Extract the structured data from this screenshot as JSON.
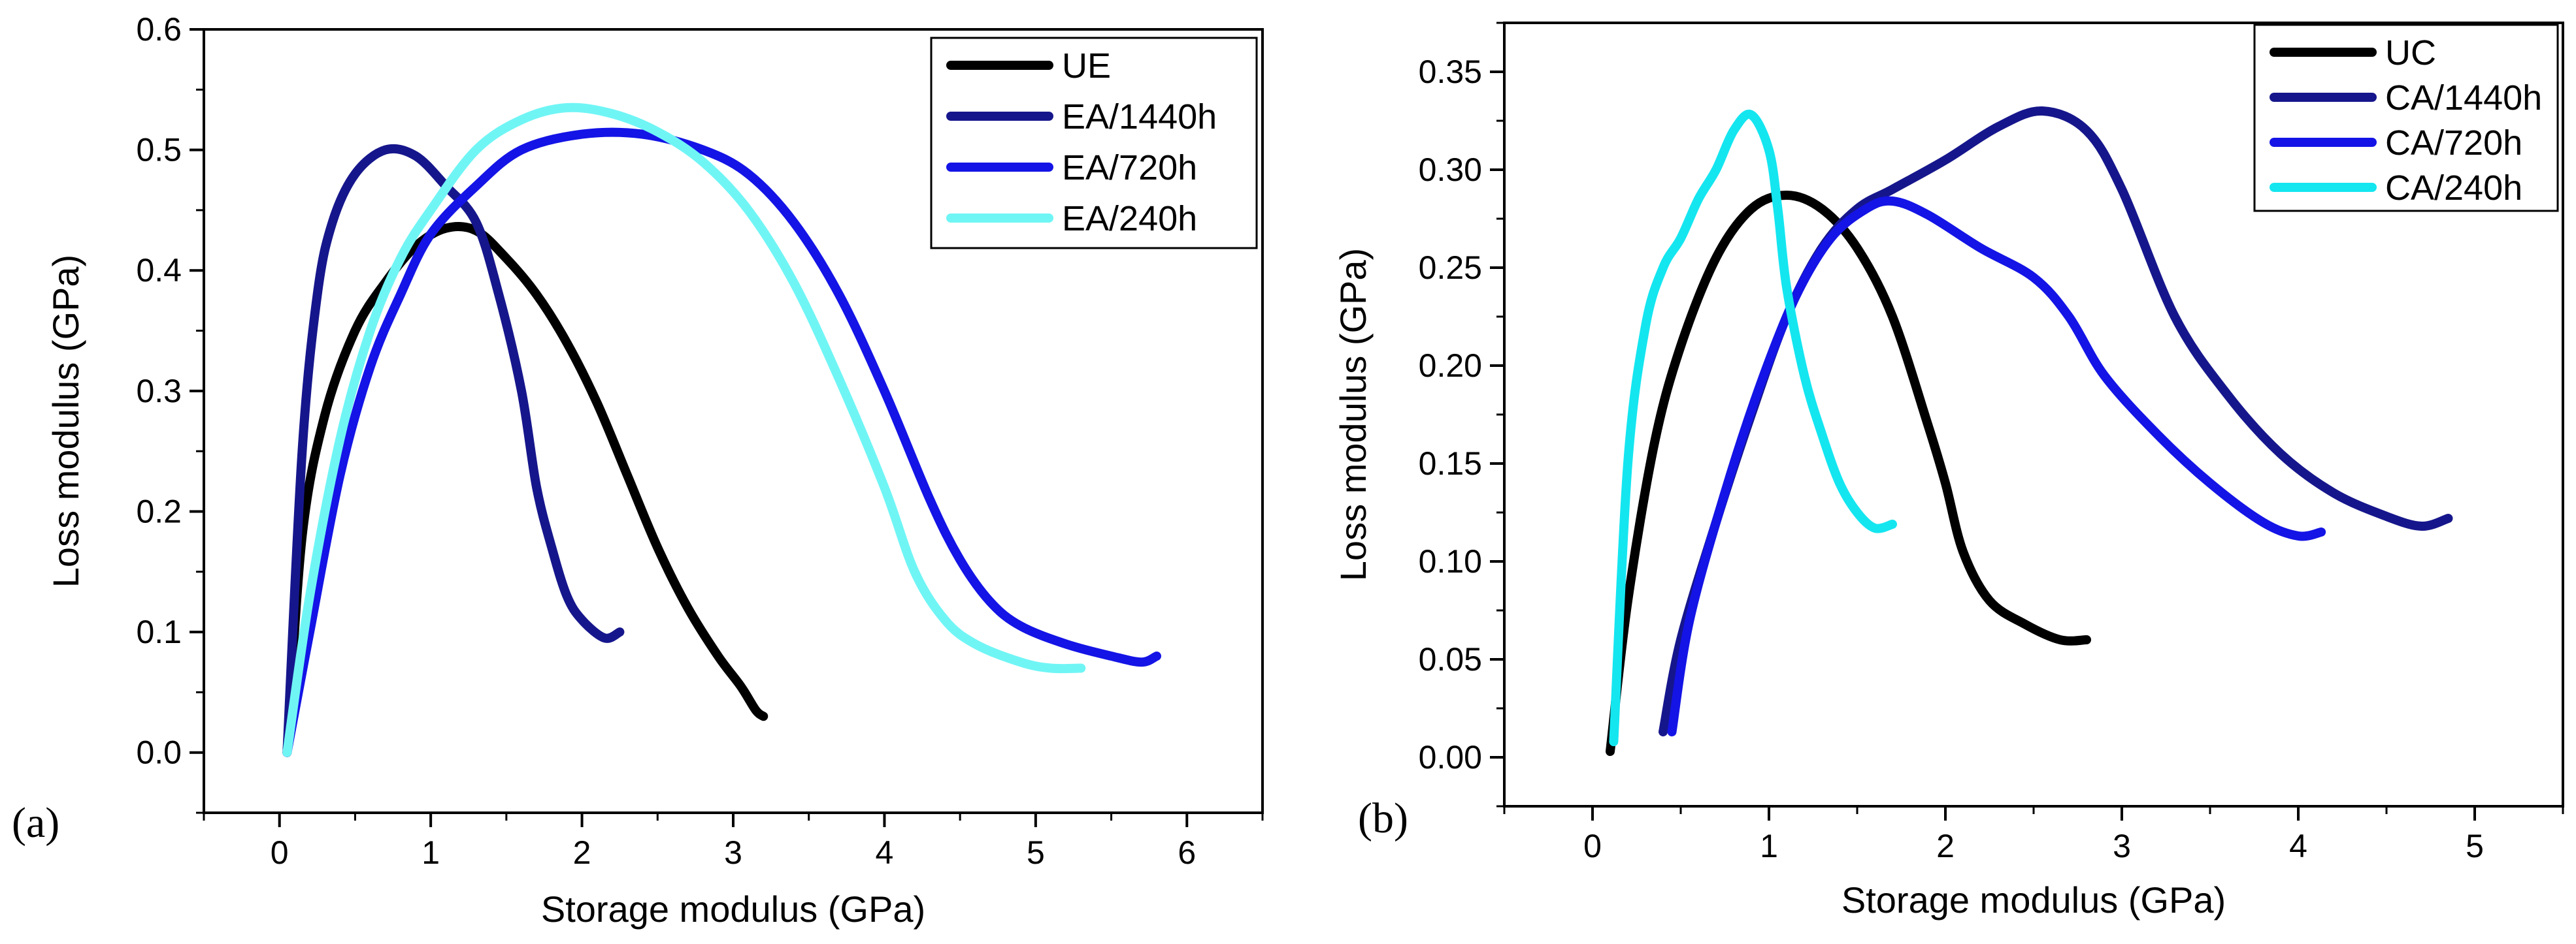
{
  "chart_data": [
    {
      "type": "line",
      "panel_label": "(a)",
      "xlabel": "Storage modulus (GPa)",
      "ylabel": "Loss modulus (GPa)",
      "xlim": [
        -0.5,
        6.5
      ],
      "ylim": [
        -0.05,
        0.6
      ],
      "xticks": [
        "0",
        "1",
        "2",
        "3",
        "4",
        "5",
        "6"
      ],
      "yticks": [
        "0.0",
        "0.1",
        "0.2",
        "0.3",
        "0.4",
        "0.5",
        "0.6"
      ],
      "legend_position": "top-right",
      "series": [
        {
          "name": "UE",
          "color": "#000000",
          "points": [
            [
              0.05,
              0.0
            ],
            [
              0.15,
              0.18
            ],
            [
              0.3,
              0.28
            ],
            [
              0.5,
              0.35
            ],
            [
              0.7,
              0.39
            ],
            [
              0.9,
              0.42
            ],
            [
              1.1,
              0.435
            ],
            [
              1.3,
              0.433
            ],
            [
              1.5,
              0.41
            ],
            [
              1.7,
              0.38
            ],
            [
              1.9,
              0.34
            ],
            [
              2.1,
              0.29
            ],
            [
              2.3,
              0.23
            ],
            [
              2.5,
              0.17
            ],
            [
              2.7,
              0.12
            ],
            [
              2.9,
              0.08
            ],
            [
              3.05,
              0.055
            ],
            [
              3.15,
              0.035
            ],
            [
              3.2,
              0.03
            ]
          ]
        },
        {
          "name": "EA/1440h",
          "color": "#16168c",
          "points": [
            [
              0.05,
              0.0
            ],
            [
              0.15,
              0.25
            ],
            [
              0.25,
              0.38
            ],
            [
              0.35,
              0.44
            ],
            [
              0.5,
              0.48
            ],
            [
              0.7,
              0.5
            ],
            [
              0.9,
              0.495
            ],
            [
              1.1,
              0.47
            ],
            [
              1.3,
              0.44
            ],
            [
              1.45,
              0.38
            ],
            [
              1.6,
              0.3
            ],
            [
              1.7,
              0.22
            ],
            [
              1.8,
              0.17
            ],
            [
              1.9,
              0.13
            ],
            [
              2.0,
              0.11
            ],
            [
              2.15,
              0.095
            ],
            [
              2.25,
              0.1
            ]
          ]
        },
        {
          "name": "EA/720h",
          "color": "#1414e6",
          "points": [
            [
              0.05,
              0.0
            ],
            [
              0.2,
              0.1
            ],
            [
              0.4,
              0.23
            ],
            [
              0.6,
              0.32
            ],
            [
              0.8,
              0.38
            ],
            [
              1.0,
              0.43
            ],
            [
              1.3,
              0.47
            ],
            [
              1.6,
              0.5
            ],
            [
              2.0,
              0.513
            ],
            [
              2.4,
              0.513
            ],
            [
              2.8,
              0.5
            ],
            [
              3.1,
              0.48
            ],
            [
              3.4,
              0.44
            ],
            [
              3.7,
              0.38
            ],
            [
              4.0,
              0.3
            ],
            [
              4.3,
              0.21
            ],
            [
              4.5,
              0.16
            ],
            [
              4.7,
              0.125
            ],
            [
              4.9,
              0.105
            ],
            [
              5.2,
              0.09
            ],
            [
              5.5,
              0.08
            ],
            [
              5.7,
              0.075
            ],
            [
              5.8,
              0.08
            ]
          ]
        },
        {
          "name": "EA/240h",
          "color": "#70f5f5",
          "points": [
            [
              0.05,
              0.0
            ],
            [
              0.2,
              0.13
            ],
            [
              0.4,
              0.26
            ],
            [
              0.6,
              0.35
            ],
            [
              0.8,
              0.41
            ],
            [
              1.0,
              0.45
            ],
            [
              1.3,
              0.5
            ],
            [
              1.6,
              0.525
            ],
            [
              1.9,
              0.535
            ],
            [
              2.2,
              0.53
            ],
            [
              2.5,
              0.515
            ],
            [
              2.8,
              0.49
            ],
            [
              3.1,
              0.45
            ],
            [
              3.4,
              0.39
            ],
            [
              3.7,
              0.31
            ],
            [
              4.0,
              0.22
            ],
            [
              4.2,
              0.15
            ],
            [
              4.4,
              0.11
            ],
            [
              4.6,
              0.09
            ],
            [
              4.9,
              0.075
            ],
            [
              5.1,
              0.07
            ],
            [
              5.3,
              0.07
            ]
          ]
        }
      ]
    },
    {
      "type": "line",
      "panel_label": "(b)",
      "xlabel": "Storage modulus (GPa)",
      "ylabel": "Loss modulus (GPa)",
      "xlim": [
        -0.5,
        5.5
      ],
      "ylim": [
        -0.025,
        0.375
      ],
      "xticks": [
        "0",
        "1",
        "2",
        "3",
        "4",
        "5"
      ],
      "yticks": [
        "0.00",
        "0.05",
        "0.10",
        "0.15",
        "0.20",
        "0.25",
        "0.30",
        "0.35"
      ],
      "legend_position": "top-right",
      "series": [
        {
          "name": "UC",
          "color": "#000000",
          "points": [
            [
              0.1,
              0.003
            ],
            [
              0.2,
              0.08
            ],
            [
              0.35,
              0.16
            ],
            [
              0.5,
              0.21
            ],
            [
              0.7,
              0.255
            ],
            [
              0.9,
              0.28
            ],
            [
              1.1,
              0.287
            ],
            [
              1.3,
              0.28
            ],
            [
              1.5,
              0.26
            ],
            [
              1.7,
              0.225
            ],
            [
              1.9,
              0.17
            ],
            [
              2.0,
              0.14
            ],
            [
              2.1,
              0.105
            ],
            [
              2.25,
              0.08
            ],
            [
              2.45,
              0.068
            ],
            [
              2.65,
              0.06
            ],
            [
              2.8,
              0.06
            ]
          ]
        },
        {
          "name": "CA/1440h",
          "color": "#16168c",
          "points": [
            [
              0.4,
              0.013
            ],
            [
              0.5,
              0.06
            ],
            [
              0.7,
              0.12
            ],
            [
              0.9,
              0.175
            ],
            [
              1.1,
              0.225
            ],
            [
              1.3,
              0.26
            ],
            [
              1.5,
              0.28
            ],
            [
              1.7,
              0.29
            ],
            [
              2.0,
              0.305
            ],
            [
              2.3,
              0.322
            ],
            [
              2.55,
              0.33
            ],
            [
              2.8,
              0.32
            ],
            [
              3.0,
              0.29
            ],
            [
              3.3,
              0.225
            ],
            [
              3.6,
              0.185
            ],
            [
              3.9,
              0.155
            ],
            [
              4.2,
              0.135
            ],
            [
              4.5,
              0.123
            ],
            [
              4.7,
              0.118
            ],
            [
              4.85,
              0.122
            ]
          ]
        },
        {
          "name": "CA/720h",
          "color": "#1414e6",
          "points": [
            [
              0.45,
              0.013
            ],
            [
              0.55,
              0.07
            ],
            [
              0.75,
              0.135
            ],
            [
              0.95,
              0.19
            ],
            [
              1.15,
              0.235
            ],
            [
              1.35,
              0.265
            ],
            [
              1.55,
              0.28
            ],
            [
              1.7,
              0.284
            ],
            [
              1.9,
              0.277
            ],
            [
              2.2,
              0.26
            ],
            [
              2.5,
              0.245
            ],
            [
              2.7,
              0.225
            ],
            [
              2.9,
              0.195
            ],
            [
              3.2,
              0.165
            ],
            [
              3.5,
              0.14
            ],
            [
              3.8,
              0.12
            ],
            [
              4.0,
              0.113
            ],
            [
              4.13,
              0.115
            ]
          ]
        },
        {
          "name": "CA/240h",
          "color": "#14e6f0",
          "points": [
            [
              0.12,
              0.008
            ],
            [
              0.2,
              0.15
            ],
            [
              0.3,
              0.22
            ],
            [
              0.4,
              0.25
            ],
            [
              0.5,
              0.265
            ],
            [
              0.6,
              0.285
            ],
            [
              0.7,
              0.3
            ],
            [
              0.8,
              0.32
            ],
            [
              0.9,
              0.328
            ],
            [
              1.0,
              0.31
            ],
            [
              1.05,
              0.28
            ],
            [
              1.1,
              0.24
            ],
            [
              1.2,
              0.195
            ],
            [
              1.3,
              0.165
            ],
            [
              1.4,
              0.14
            ],
            [
              1.5,
              0.125
            ],
            [
              1.6,
              0.117
            ],
            [
              1.7,
              0.119
            ]
          ]
        }
      ]
    }
  ]
}
